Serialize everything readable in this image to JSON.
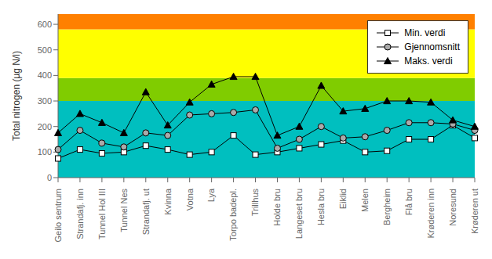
{
  "chart_data": {
    "type": "line",
    "categories": [
      "Geilo sentrum",
      "Strandafj. inn",
      "Tunnel Hol III",
      "Tunnel Nes",
      "Strandafj. ut",
      "Kvinna",
      "Votna",
      "Lya",
      "Torpo badepl.",
      "Trillhus",
      "Holde bru",
      "Langeset bru",
      "Hesla bru",
      "Eiklid",
      "Melen",
      "Bergheim",
      "Flå bru",
      "Krøderen inn",
      "Noresund",
      "Krøderen ut"
    ],
    "series": [
      {
        "name": "Min. verdi",
        "color": "black",
        "marker": "square",
        "values": [
          75,
          110,
          95,
          100,
          125,
          110,
          90,
          100,
          165,
          90,
          100,
          115,
          130,
          145,
          100,
          105,
          150,
          150,
          205,
          155
        ]
      },
      {
        "name": "Gjennomsnitt",
        "color": "black",
        "marker": "circle",
        "values": [
          110,
          185,
          135,
          120,
          175,
          165,
          245,
          250,
          255,
          265,
          115,
          150,
          200,
          155,
          160,
          185,
          215,
          215,
          210,
          185
        ]
      },
      {
        "name": "Maks. verdi",
        "color": "black",
        "marker": "triangle",
        "values": [
          175,
          250,
          215,
          175,
          335,
          205,
          295,
          365,
          395,
          395,
          165,
          200,
          360,
          260,
          270,
          300,
          300,
          295,
          225,
          200
        ]
      }
    ],
    "ylabel": "Total nitrogen (µg N/l)",
    "ylim": [
      0,
      640
    ],
    "yticks": [
      0,
      100,
      200,
      300,
      400,
      500,
      600
    ],
    "bands": [
      {
        "ymin": 0,
        "ymax": 300,
        "color": "#00BFBF"
      },
      {
        "ymin": 300,
        "ymax": 390,
        "color": "#80CC00"
      },
      {
        "ymin": 390,
        "ymax": 580,
        "color": "#FFFF00"
      },
      {
        "ymin": 580,
        "ymax": 640,
        "color": "#FF8000"
      }
    ],
    "grid": false,
    "legend": "upper right"
  }
}
